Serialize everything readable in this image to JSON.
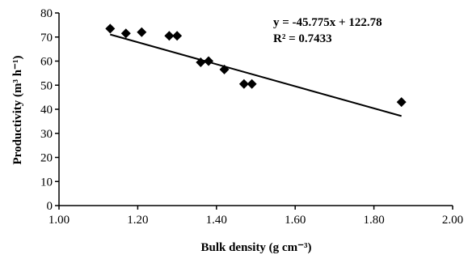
{
  "chart_data": {
    "type": "scatter",
    "xlabel": "Bulk density (g cm⁻³)",
    "ylabel": "Productivity (m³ h⁻¹)",
    "xlim": [
      1.0,
      2.0
    ],
    "ylim": [
      0,
      80
    ],
    "x_ticks": [
      "1.00",
      "1.20",
      "1.40",
      "1.60",
      "1.80",
      "2.00"
    ],
    "y_ticks": [
      "0",
      "10",
      "20",
      "30",
      "40",
      "50",
      "60",
      "70",
      "80"
    ],
    "grid": false,
    "marker": "diamond",
    "points": [
      {
        "x": 1.13,
        "y": 73.5
      },
      {
        "x": 1.17,
        "y": 71.5
      },
      {
        "x": 1.21,
        "y": 72.0
      },
      {
        "x": 1.28,
        "y": 70.5
      },
      {
        "x": 1.3,
        "y": 70.5
      },
      {
        "x": 1.36,
        "y": 59.5
      },
      {
        "x": 1.38,
        "y": 60.0
      },
      {
        "x": 1.42,
        "y": 56.5
      },
      {
        "x": 1.47,
        "y": 50.5
      },
      {
        "x": 1.49,
        "y": 50.5
      },
      {
        "x": 1.87,
        "y": 43.0
      }
    ],
    "trendline": {
      "slope": -45.775,
      "intercept": 122.78,
      "x_range": [
        1.13,
        1.87
      ],
      "equation": "y = -45.775x + 122.78",
      "r2": "R² = 0.7433"
    }
  }
}
